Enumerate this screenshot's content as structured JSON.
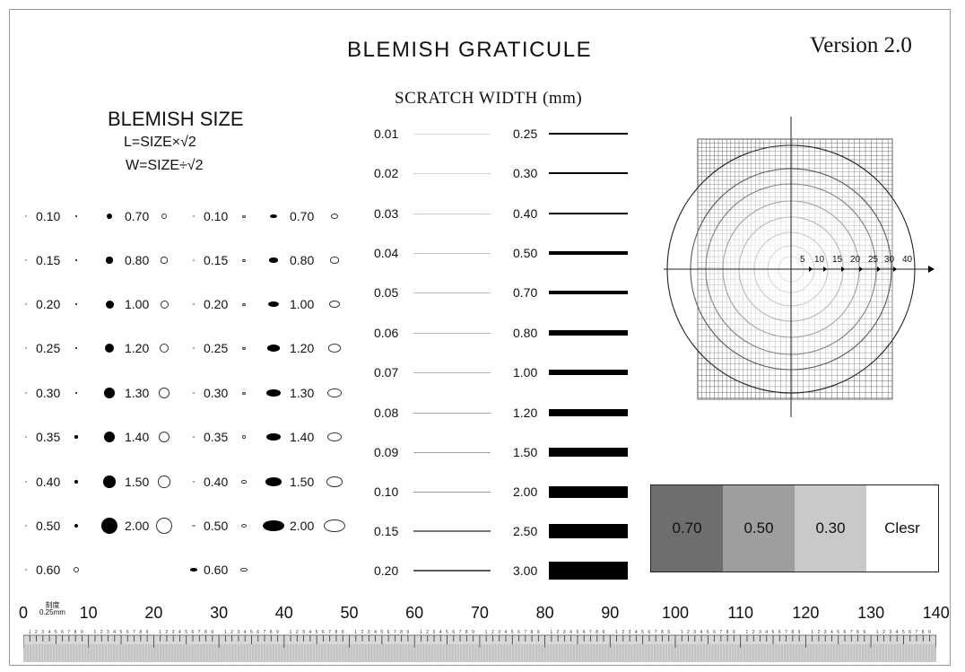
{
  "header": {
    "title": "BLEMISH  GRATICULE",
    "version": "Version 2.0"
  },
  "blemish": {
    "title": "BLEMISH  SIZE",
    "formula_l": "L=SIZE×√2",
    "formula_w": "W=SIZE÷√2",
    "col1": [
      "0.10",
      "0.15",
      "0.20",
      "0.25",
      "0.30",
      "0.35",
      "0.40",
      "0.50",
      "0.60"
    ],
    "col2": [
      "0.70",
      "0.80",
      "1.00",
      "1.20",
      "1.30",
      "1.40",
      "1.50",
      "2.00"
    ],
    "col3": [
      "0.10",
      "0.15",
      "0.20",
      "0.25",
      "0.30",
      "0.35",
      "0.40",
      "0.50",
      "0.60"
    ],
    "col4": [
      "0.70",
      "0.80",
      "1.00",
      "1.20",
      "1.30",
      "1.40",
      "1.50",
      "2.00"
    ]
  },
  "scratch": {
    "title": "SCRATCH WIDTH (mm)",
    "left": [
      "0.01",
      "0.02",
      "0.03",
      "0.04",
      "0.05",
      "0.06",
      "0.07",
      "0.08",
      "0.09",
      "0.10",
      "0.15",
      "0.20"
    ],
    "right": [
      "0.25",
      "0.30",
      "0.40",
      "0.50",
      "0.70",
      "0.80",
      "1.00",
      "1.20",
      "1.50",
      "2.00",
      "2.50",
      "3.00"
    ]
  },
  "target": {
    "ring_labels": [
      "5",
      "10",
      "15",
      "20",
      "25",
      "30",
      "40"
    ]
  },
  "density": {
    "cells": [
      {
        "label": "0.70",
        "color": "#6e6e6e"
      },
      {
        "label": "0.50",
        "color": "#9e9e9e"
      },
      {
        "label": "0.30",
        "color": "#c9c9c9"
      },
      {
        "label": "Clesr",
        "color": "#ffffff"
      }
    ]
  },
  "ruler": {
    "numbers": [
      "0",
      "10",
      "20",
      "30",
      "40",
      "50",
      "60",
      "70",
      "80",
      "90",
      "100",
      "110",
      "120",
      "130",
      "140"
    ],
    "unit_top": "刻度",
    "unit_bottom": "0.25mm",
    "digits": [
      "1",
      "2",
      "3",
      "4",
      "5",
      "6",
      "7",
      "8",
      "9"
    ]
  }
}
